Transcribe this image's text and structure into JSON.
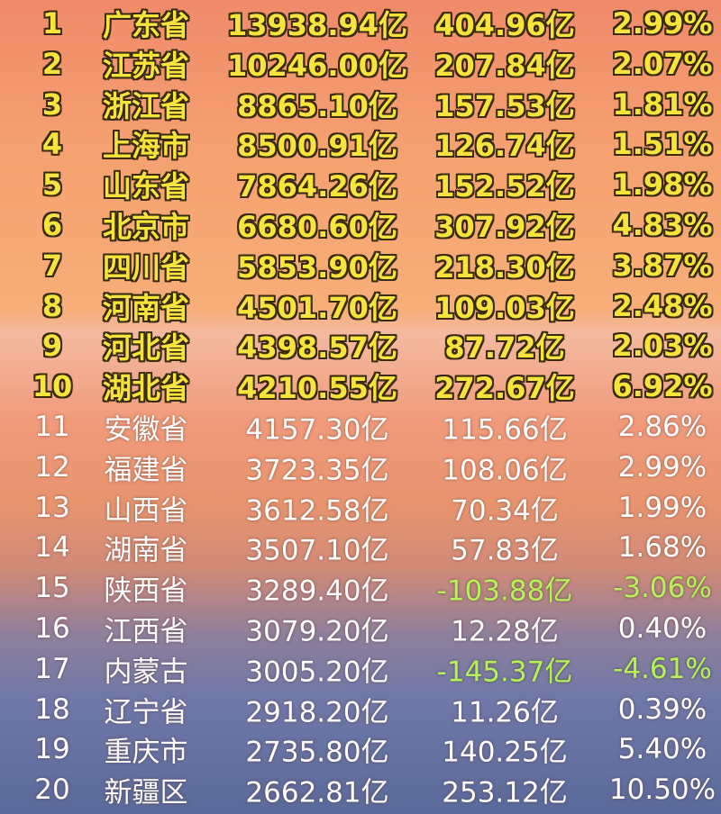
{
  "table": {
    "rows": [
      [
        "1",
        "广东省",
        "13938.94亿",
        "404.96亿",
        "2.99%"
      ],
      [
        "2",
        "江苏省",
        "10246.00亿",
        "207.84亿",
        "2.07%"
      ],
      [
        "3",
        "浙江省",
        "8865.10亿",
        "157.53亿",
        "1.81%"
      ],
      [
        "4",
        "上海市",
        "8500.91亿",
        "126.74亿",
        "1.51%"
      ],
      [
        "5",
        "山东省",
        "7864.26亿",
        "152.52亿",
        "1.98%"
      ],
      [
        "6",
        "北京市",
        "6680.60亿",
        "307.92亿",
        "4.83%"
      ],
      [
        "7",
        "四川省",
        "5853.90亿",
        "218.30亿",
        "3.87%"
      ],
      [
        "8",
        "河南省",
        "4501.70亿",
        "109.03亿",
        "2.48%"
      ],
      [
        "9",
        "河北省",
        "4398.57亿",
        "87.72亿",
        "2.03%"
      ],
      [
        "10",
        "湖北省",
        "4210.55亿",
        "272.67亿",
        "6.92%"
      ],
      [
        "11",
        "安徽省",
        "4157.30亿",
        "115.66亿",
        "2.86%"
      ],
      [
        "12",
        "福建省",
        "3723.35亿",
        "108.06亿",
        "2.99%"
      ],
      [
        "13",
        "山西省",
        "3612.58亿",
        "70.34亿",
        "1.99%"
      ],
      [
        "14",
        "湖南省",
        "3507.10亿",
        "57.83亿",
        "1.68%"
      ],
      [
        "15",
        "陕西省",
        "3289.40亿",
        "-103.88亿",
        "-3.06%"
      ],
      [
        "16",
        "江西省",
        "3079.20亿",
        "12.28亿",
        "0.40%"
      ],
      [
        "17",
        "内蒙古",
        "3005.20亿",
        "-145.37亿",
        "-4.61%"
      ],
      [
        "18",
        "辽宁省",
        "2918.20亿",
        "11.26亿",
        "0.39%"
      ],
      [
        "19",
        "重庆市",
        "2735.80亿",
        "140.25亿",
        "5.40%"
      ],
      [
        "20",
        "新疆区",
        "2662.81亿",
        "253.12亿",
        "10.50%"
      ]
    ]
  }
}
